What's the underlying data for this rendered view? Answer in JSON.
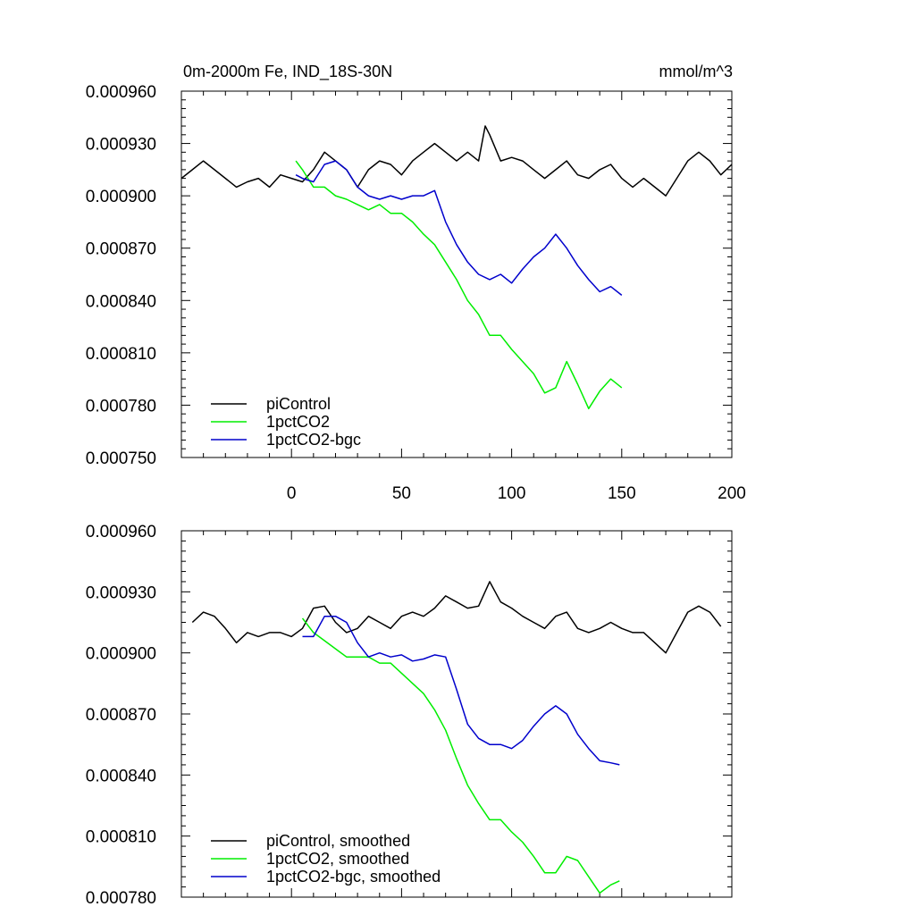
{
  "header": {
    "title": "0m-2000m Fe, IND_18S-30N",
    "units": "mmol/m^3"
  },
  "colors": {
    "piControl": "#000000",
    "1pctCO2": "#00ee00",
    "1pctCO2-bgc": "#0000cc"
  },
  "chart_data": [
    {
      "type": "line",
      "title": "0m-2000m Fe, IND_18S-30N",
      "units_label": "mmol/m^3",
      "xlabel": "",
      "ylabel": "",
      "xlim": [
        -50,
        200
      ],
      "ylim": [
        0.00075,
        0.00096
      ],
      "x_ticks": [
        0,
        50,
        100,
        150,
        200
      ],
      "x_tick_labels": [
        "0",
        "50",
        "100",
        "150",
        "200"
      ],
      "y_ticks": [
        0.00075,
        0.00078,
        0.00081,
        0.00084,
        0.00087,
        0.0009,
        0.00093,
        0.00096
      ],
      "y_tick_labels": [
        "0.000750",
        "0.000780",
        "0.000810",
        "0.000840",
        "0.000870",
        "0.000900",
        "0.000930",
        "0.000960"
      ],
      "legend_position": "bottom-left",
      "series": [
        {
          "name": "piControl",
          "color": "#000000",
          "x": [
            -50,
            -45,
            -40,
            -35,
            -30,
            -25,
            -20,
            -15,
            -10,
            -5,
            0,
            5,
            10,
            15,
            20,
            25,
            30,
            35,
            40,
            45,
            50,
            55,
            60,
            65,
            70,
            75,
            80,
            85,
            88,
            90,
            95,
            100,
            105,
            110,
            115,
            120,
            125,
            130,
            135,
            140,
            145,
            150,
            155,
            160,
            165,
            170,
            175,
            180,
            185,
            190,
            195,
            200
          ],
          "y": [
            0.00091,
            0.000915,
            0.00092,
            0.000915,
            0.00091,
            0.000905,
            0.000908,
            0.00091,
            0.000905,
            0.000912,
            0.00091,
            0.000908,
            0.000915,
            0.000925,
            0.00092,
            0.000915,
            0.000905,
            0.000915,
            0.00092,
            0.000918,
            0.000912,
            0.00092,
            0.000925,
            0.00093,
            0.000925,
            0.00092,
            0.000925,
            0.00092,
            0.00094,
            0.000935,
            0.00092,
            0.000922,
            0.00092,
            0.000915,
            0.00091,
            0.000915,
            0.00092,
            0.000912,
            0.00091,
            0.000915,
            0.000918,
            0.00091,
            0.000905,
            0.00091,
            0.000905,
            0.0009,
            0.00091,
            0.00092,
            0.000925,
            0.00092,
            0.000912,
            0.000918
          ]
        },
        {
          "name": "1pctCO2",
          "color": "#00ee00",
          "x": [
            2,
            5,
            10,
            15,
            20,
            25,
            30,
            35,
            40,
            45,
            50,
            55,
            60,
            65,
            70,
            75,
            80,
            85,
            90,
            95,
            100,
            105,
            110,
            115,
            120,
            125,
            130,
            135,
            140,
            145,
            150
          ],
          "y": [
            0.00092,
            0.000915,
            0.000905,
            0.000905,
            0.0009,
            0.000898,
            0.000895,
            0.000892,
            0.000895,
            0.00089,
            0.00089,
            0.000885,
            0.000878,
            0.000872,
            0.000862,
            0.000852,
            0.00084,
            0.000832,
            0.00082,
            0.00082,
            0.000812,
            0.000805,
            0.000798,
            0.000787,
            0.00079,
            0.000805,
            0.000792,
            0.000778,
            0.000788,
            0.000795,
            0.00079
          ]
        },
        {
          "name": "1pctCO2-bgc",
          "color": "#0000cc",
          "x": [
            2,
            5,
            10,
            15,
            20,
            25,
            30,
            35,
            40,
            45,
            50,
            55,
            60,
            65,
            70,
            75,
            80,
            85,
            90,
            95,
            100,
            105,
            110,
            115,
            120,
            125,
            130,
            135,
            140,
            145,
            150
          ],
          "y": [
            0.000912,
            0.00091,
            0.000908,
            0.000918,
            0.00092,
            0.000915,
            0.000905,
            0.0009,
            0.000898,
            0.0009,
            0.000898,
            0.0009,
            0.0009,
            0.000903,
            0.000885,
            0.000872,
            0.000862,
            0.000855,
            0.000852,
            0.000855,
            0.00085,
            0.000858,
            0.000865,
            0.00087,
            0.000878,
            0.00087,
            0.00086,
            0.000852,
            0.000845,
            0.000848,
            0.000843
          ]
        }
      ]
    },
    {
      "type": "line",
      "title": "",
      "xlabel": "",
      "ylabel": "",
      "xlim": [
        -50,
        200
      ],
      "ylim": [
        0.00078,
        0.00096
      ],
      "x_ticks": [
        0,
        50,
        100,
        150,
        200
      ],
      "x_tick_labels": [],
      "y_ticks": [
        0.00078,
        0.00081,
        0.00084,
        0.00087,
        0.0009,
        0.00093,
        0.00096
      ],
      "y_tick_labels": [
        "0.000780",
        "0.000810",
        "0.000840",
        "0.000870",
        "0.000900",
        "0.000930",
        "0.000960"
      ],
      "legend_position": "bottom-left",
      "series": [
        {
          "name": "piControl, smoothed",
          "color": "#000000",
          "x": [
            -45,
            -40,
            -35,
            -30,
            -25,
            -20,
            -15,
            -10,
            -5,
            0,
            5,
            10,
            15,
            20,
            25,
            30,
            35,
            40,
            45,
            50,
            55,
            60,
            65,
            70,
            75,
            80,
            85,
            90,
            95,
            100,
            105,
            110,
            115,
            120,
            125,
            130,
            135,
            140,
            145,
            150,
            155,
            160,
            165,
            170,
            175,
            180,
            185,
            190,
            195
          ],
          "y": [
            0.000915,
            0.00092,
            0.000918,
            0.000912,
            0.000905,
            0.00091,
            0.000908,
            0.00091,
            0.00091,
            0.000908,
            0.000912,
            0.000922,
            0.000923,
            0.000915,
            0.00091,
            0.000912,
            0.000918,
            0.000915,
            0.000912,
            0.000918,
            0.00092,
            0.000918,
            0.000922,
            0.000928,
            0.000925,
            0.000922,
            0.000923,
            0.000935,
            0.000925,
            0.000922,
            0.000918,
            0.000915,
            0.000912,
            0.000918,
            0.00092,
            0.000912,
            0.00091,
            0.000912,
            0.000915,
            0.000912,
            0.00091,
            0.00091,
            0.000905,
            0.0009,
            0.00091,
            0.00092,
            0.000923,
            0.00092,
            0.000913
          ]
        },
        {
          "name": "1pctCO2, smoothed",
          "color": "#00ee00",
          "x": [
            5,
            10,
            15,
            20,
            25,
            30,
            35,
            40,
            45,
            50,
            55,
            60,
            65,
            70,
            75,
            80,
            85,
            90,
            95,
            100,
            105,
            110,
            115,
            120,
            125,
            130,
            135,
            140,
            145,
            149
          ],
          "y": [
            0.000917,
            0.00091,
            0.000906,
            0.000902,
            0.000898,
            0.000898,
            0.000898,
            0.000895,
            0.000895,
            0.00089,
            0.000885,
            0.00088,
            0.000872,
            0.000862,
            0.000848,
            0.000835,
            0.000826,
            0.000818,
            0.000818,
            0.000812,
            0.000807,
            0.0008,
            0.000792,
            0.000792,
            0.0008,
            0.000798,
            0.00079,
            0.000782,
            0.000786,
            0.000788
          ]
        },
        {
          "name": "1pctCO2-bgc, smoothed",
          "color": "#0000cc",
          "x": [
            5,
            10,
            15,
            20,
            25,
            30,
            35,
            40,
            45,
            50,
            55,
            60,
            65,
            70,
            75,
            80,
            85,
            90,
            95,
            100,
            105,
            110,
            115,
            120,
            125,
            130,
            135,
            140,
            145,
            149
          ],
          "y": [
            0.000908,
            0.000908,
            0.000918,
            0.000918,
            0.000915,
            0.000905,
            0.000898,
            0.0009,
            0.000898,
            0.000899,
            0.000896,
            0.000897,
            0.000899,
            0.000898,
            0.000882,
            0.000865,
            0.000858,
            0.000855,
            0.000855,
            0.000853,
            0.000857,
            0.000864,
            0.00087,
            0.000874,
            0.00087,
            0.00086,
            0.000853,
            0.000847,
            0.000846,
            0.000845
          ]
        }
      ]
    }
  ]
}
